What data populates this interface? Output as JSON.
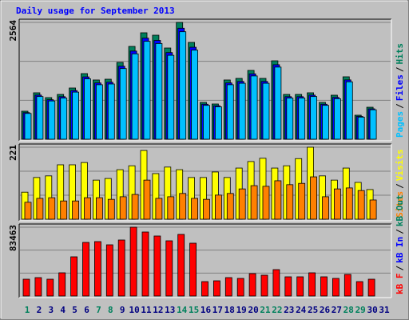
{
  "chart_data": [
    {
      "type": "bar",
      "title": "Daily usage for September 2013",
      "legend_separator": "/",
      "ylim": [
        0,
        2564
      ],
      "yticks": [
        2564
      ],
      "series": [
        {
          "name": "Hits",
          "color": "#00805c",
          "values": [
            615,
            1019,
            913,
            983,
            1124,
            1440,
            1300,
            1317,
            1686,
            2037,
            2336,
            2283,
            2002,
            2564,
            2125,
            808,
            773,
            1300,
            1335,
            1510,
            1335,
            1721,
            983,
            983,
            1019,
            808,
            966,
            1370,
            527,
            702,
            null
          ]
        },
        {
          "name": "Files",
          "color": "#0000ff",
          "values": [
            584,
            968,
            867,
            934,
            1068,
            1368,
            1235,
            1251,
            1602,
            1935,
            2219,
            2169,
            1902,
            2436,
            2019,
            768,
            734,
            1235,
            1268,
            1435,
            1268,
            1635,
            934,
            934,
            968,
            768,
            918,
            1302,
            501,
            667,
            null
          ]
        },
        {
          "name": "Pages",
          "color": "#00c0ff",
          "values": [
            566,
            937,
            840,
            904,
            1034,
            1325,
            1196,
            1212,
            1551,
            1874,
            2149,
            2100,
            1842,
            2359,
            1955,
            743,
            711,
            1196,
            1228,
            1389,
            1228,
            1583,
            904,
            904,
            937,
            743,
            889,
            1260,
            485,
            646,
            null
          ]
        }
      ]
    },
    {
      "type": "bar",
      "legend_separator": "/",
      "ylim": [
        0,
        221
      ],
      "yticks": [
        221
      ],
      "series": [
        {
          "name": "Visits",
          "color": "#ffff00",
          "values": [
            83,
            128,
            133,
            167,
            167,
            174,
            120,
            125,
            152,
            164,
            211,
            140,
            160,
            152,
            128,
            128,
            145,
            128,
            157,
            177,
            187,
            157,
            164,
            186,
            221,
            133,
            120,
            157,
            113,
            91,
            null
          ]
        },
        {
          "name": "Sites",
          "color": "#ff8000",
          "values": [
            52,
            64,
            66,
            56,
            56,
            66,
            66,
            61,
            69,
            76,
            120,
            64,
            69,
            79,
            64,
            61,
            74,
            79,
            93,
            103,
            101,
            118,
            106,
            110,
            130,
            69,
            93,
            96,
            88,
            59,
            null
          ]
        }
      ]
    },
    {
      "type": "bar",
      "legend_separator": "/",
      "ylim": [
        0,
        83463
      ],
      "yticks": [
        83463
      ],
      "categories": [
        "1",
        "2",
        "3",
        "4",
        "5",
        "6",
        "7",
        "8",
        "9",
        "10",
        "11",
        "12",
        "13",
        "14",
        "15",
        "16",
        "17",
        "18",
        "19",
        "20",
        "21",
        "22",
        "23",
        "24",
        "25",
        "26",
        "27",
        "28",
        "29",
        "30",
        "31"
      ],
      "category_colors": [
        "#00805c",
        "#000080",
        "#000080",
        "#000080",
        "#000080",
        "#000080",
        "#00805c",
        "#00805c",
        "#000080",
        "#000080",
        "#000080",
        "#000080",
        "#000080",
        "#00805c",
        "#00805c",
        "#000080",
        "#000080",
        "#000080",
        "#000080",
        "#000080",
        "#00805c",
        "#00805c",
        "#000080",
        "#000080",
        "#000080",
        "#000080",
        "#000080",
        "#00805c",
        "#00805c",
        "#000080",
        "#000080"
      ],
      "series": [
        {
          "name": "kB Out",
          "color": "#00805c"
        },
        {
          "name": "kB In",
          "color": "#0000ff"
        },
        {
          "name": "kB F",
          "color": "#ff0000",
          "values": [
            20380,
            22322,
            20380,
            28145,
            47554,
            65025,
            65995,
            62113,
            67936,
            83463,
            77641,
            72788,
            66965,
            74730,
            64054,
            17469,
            18439,
            22322,
            21351,
            27174,
            25233,
            32026,
            23292,
            23292,
            28145,
            23292,
            21351,
            26203,
            17469,
            20380,
            null
          ]
        }
      ]
    }
  ]
}
